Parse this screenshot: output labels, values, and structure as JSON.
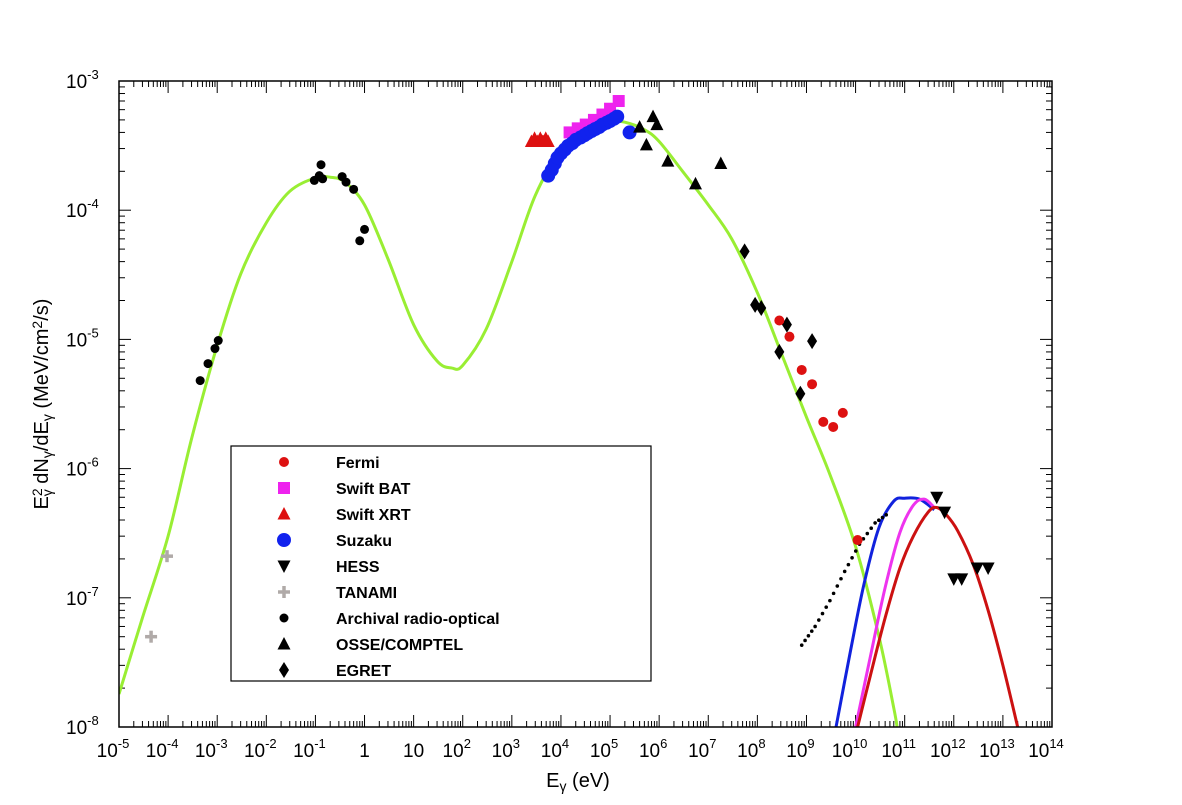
{
  "chart_data": {
    "type": "scatter",
    "x_scale": "log",
    "y_scale": "log",
    "xlim": [
      1e-05,
      100000000000000.0
    ],
    "ylim": [
      1e-08,
      0.001
    ],
    "x_ticks": [
      {
        "v": 1e-05,
        "base": "10",
        "exp": "-5"
      },
      {
        "v": 0.0001,
        "base": "10",
        "exp": "-4"
      },
      {
        "v": 0.001,
        "base": "10",
        "exp": "-3"
      },
      {
        "v": 0.01,
        "base": "10",
        "exp": "-2"
      },
      {
        "v": 0.1,
        "base": "10",
        "exp": "-1"
      },
      {
        "v": 1,
        "base": "1",
        "exp": ""
      },
      {
        "v": 10,
        "base": "10",
        "exp": ""
      },
      {
        "v": 100,
        "base": "10",
        "exp": "2"
      },
      {
        "v": 1000.0,
        "base": "10",
        "exp": "3"
      },
      {
        "v": 10000.0,
        "base": "10",
        "exp": "4"
      },
      {
        "v": 100000.0,
        "base": "10",
        "exp": "5"
      },
      {
        "v": 1000000.0,
        "base": "10",
        "exp": "6"
      },
      {
        "v": 10000000.0,
        "base": "10",
        "exp": "7"
      },
      {
        "v": 100000000.0,
        "base": "10",
        "exp": "8"
      },
      {
        "v": 1000000000.0,
        "base": "10",
        "exp": "9"
      },
      {
        "v": 10000000000.0,
        "base": "10",
        "exp": "10"
      },
      {
        "v": 100000000000.0,
        "base": "10",
        "exp": "11"
      },
      {
        "v": 1000000000000.0,
        "base": "10",
        "exp": "12"
      },
      {
        "v": 10000000000000.0,
        "base": "10",
        "exp": "13"
      },
      {
        "v": 100000000000000.0,
        "base": "10",
        "exp": "14"
      }
    ],
    "y_ticks": [
      {
        "v": 1e-08,
        "base": "10",
        "exp": "-8"
      },
      {
        "v": 1e-07,
        "base": "10",
        "exp": "-7"
      },
      {
        "v": 1e-06,
        "base": "10",
        "exp": "-6"
      },
      {
        "v": 1e-05,
        "base": "10",
        "exp": "-5"
      },
      {
        "v": 0.0001,
        "base": "10",
        "exp": "-4"
      },
      {
        "v": 0.001,
        "base": "10",
        "exp": "-3"
      }
    ],
    "xlabel": {
      "main": "E",
      "sub": "γ",
      "rest": " (eV)"
    },
    "ylabel": {
      "a": "E",
      "a_sup": "2",
      "a_sub": "γ",
      "b": " dN",
      "b_sub": "γ",
      "c": "/dE",
      "c_sub": "γ",
      "d": "  (MeV/cm",
      "d_sup": "2",
      "e": "/s)"
    },
    "legend": {
      "position": "lower-left",
      "entries": [
        {
          "label": "Fermi",
          "marker": "circle",
          "color": "#dd1111"
        },
        {
          "label": "Swift BAT",
          "marker": "square",
          "color": "#ee22ee"
        },
        {
          "label": "Swift XRT",
          "marker": "triangle-up",
          "color": "#dd1111"
        },
        {
          "label": "Suzaku",
          "marker": "circle-large",
          "color": "#1122ee"
        },
        {
          "label": "HESS",
          "marker": "triangle-down",
          "color": "#000000"
        },
        {
          "label": "TANAMI",
          "marker": "plus",
          "color": "#b0aaa8"
        },
        {
          "label": "Archival radio-optical",
          "marker": "circle-small",
          "color": "#000000"
        },
        {
          "label": "OSSE/COMPTEL",
          "marker": "triangle-up",
          "color": "#000000"
        },
        {
          "label": "EGRET",
          "marker": "diamond",
          "color": "#000000"
        }
      ]
    },
    "series": [
      {
        "marker": "plus",
        "color": "#b0aaa8",
        "points": [
          [
            4.5e-05,
            5e-08
          ],
          [
            9.5e-05,
            2.1e-07
          ]
        ]
      },
      {
        "marker": "circle-small",
        "color": "#000000",
        "points": [
          [
            0.00045,
            4.8e-06
          ],
          [
            0.00065,
            6.5e-06
          ],
          [
            0.0009,
            8.5e-06
          ],
          [
            0.00105,
            9.8e-06
          ],
          [
            0.095,
            0.00017
          ],
          [
            0.12,
            0.000185
          ],
          [
            0.13,
            0.000225
          ],
          [
            0.14,
            0.000175
          ],
          [
            0.35,
            0.000182
          ],
          [
            0.42,
            0.000165
          ],
          [
            0.6,
            0.000145
          ],
          [
            0.8,
            5.8e-05
          ],
          [
            1.0,
            7.1e-05
          ]
        ]
      },
      {
        "marker": "triangle-up",
        "color": "#dd1111",
        "points": [
          [
            2500.0,
            0.00034
          ],
          [
            2900.0,
            0.00036
          ],
          [
            3300.0,
            0.00034
          ],
          [
            3800.0,
            0.00036
          ],
          [
            4300.0,
            0.00034
          ],
          [
            4900.0,
            0.00036
          ],
          [
            5500.0,
            0.00034
          ]
        ]
      },
      {
        "marker": "square",
        "color": "#ee22ee",
        "points": [
          [
            15000.0,
            0.0004
          ],
          [
            22000.0,
            0.00043
          ],
          [
            32000.0,
            0.00046
          ],
          [
            47000.0,
            0.0005
          ],
          [
            70000.0,
            0.00055
          ],
          [
            100000.0,
            0.00061
          ],
          [
            150000.0,
            0.0007
          ]
        ]
      },
      {
        "marker": "circle-large",
        "color": "#1122ee",
        "points": [
          [
            5500.0,
            0.000185
          ],
          [
            6500.0,
            0.000205
          ],
          [
            7500.0,
            0.00023
          ],
          [
            8500.0,
            0.000255
          ],
          [
            10000.0,
            0.000275
          ],
          [
            12000.0,
            0.000295
          ],
          [
            14000.0,
            0.000315
          ],
          [
            17000.0,
            0.00033
          ],
          [
            20000.0,
            0.00035
          ],
          [
            25000.0,
            0.000365
          ],
          [
            30000.0,
            0.00038
          ],
          [
            35000.0,
            0.000395
          ],
          [
            42000.0,
            0.00041
          ],
          [
            50000.0,
            0.000425
          ],
          [
            60000.0,
            0.00044
          ],
          [
            70000.0,
            0.00046
          ],
          [
            85000.0,
            0.000475
          ],
          [
            100000.0,
            0.00049
          ],
          [
            120000.0,
            0.00051
          ],
          [
            140000.0,
            0.00053
          ],
          [
            250000.0,
            0.0004
          ]
        ]
      },
      {
        "marker": "triangle-up",
        "color": "#000000",
        "points": [
          [
            400000.0,
            0.00044
          ],
          [
            550000.0,
            0.00032
          ],
          [
            750000.0,
            0.00053
          ],
          [
            900000.0,
            0.00046
          ],
          [
            1500000.0,
            0.00024
          ],
          [
            5500000.0,
            0.00016
          ],
          [
            18000000.0,
            0.00023
          ]
        ]
      },
      {
        "marker": "diamond",
        "color": "#000000",
        "points": [
          [
            55000000.0,
            4.8e-05
          ],
          [
            90000000.0,
            1.85e-05
          ],
          [
            120000000.0,
            1.75e-05
          ],
          [
            280000000.0,
            8e-06
          ],
          [
            400000000.0,
            1.3e-05
          ],
          [
            750000000.0,
            3.8e-06
          ],
          [
            1300000000.0,
            9.7e-06
          ]
        ]
      },
      {
        "marker": "circle",
        "color": "#dd1111",
        "points": [
          [
            280000000.0,
            1.4e-05
          ],
          [
            450000000.0,
            1.05e-05
          ],
          [
            800000000.0,
            5.8e-06
          ],
          [
            1300000000.0,
            4.5e-06
          ],
          [
            2200000000.0,
            2.3e-06
          ],
          [
            3500000000.0,
            2.1e-06
          ],
          [
            5500000000.0,
            2.7e-06
          ],
          [
            11000000000.0,
            2.8e-07
          ]
        ]
      },
      {
        "marker": "triangle-down",
        "color": "#000000",
        "points": [
          [
            450000000000.0,
            6e-07
          ],
          [
            650000000000.0,
            4.6e-07
          ],
          [
            1000000000000.0,
            1.4e-07
          ],
          [
            1450000000000.0,
            1.4e-07
          ],
          [
            3000000000000.0,
            1.7e-07
          ],
          [
            5000000000000.0,
            1.7e-07
          ]
        ]
      }
    ],
    "curves": [
      {
        "color": "#99ee33",
        "points": [
          [
            1e-05,
            1.8e-08
          ],
          [
            3e-05,
            7e-08
          ],
          [
            0.0001,
            3e-07
          ],
          [
            0.0003,
            1.7e-06
          ],
          [
            0.001,
            9e-06
          ],
          [
            0.003,
            3.2e-05
          ],
          [
            0.01,
            8e-05
          ],
          [
            0.03,
            0.00014
          ],
          [
            0.1,
            0.000178
          ],
          [
            0.2,
            0.00018
          ],
          [
            0.4,
            0.000165
          ],
          [
            1,
            0.00011
          ],
          [
            3,
            4.2e-05
          ],
          [
            10,
            1.3e-05
          ],
          [
            30,
            6.8e-06
          ],
          [
            60,
            6e-06
          ],
          [
            100,
            6.3e-06
          ],
          [
            300,
            1.2e-05
          ],
          [
            1000.0,
            4e-05
          ],
          [
            3000.0,
            0.00013
          ],
          [
            10000.0,
            0.00029
          ],
          [
            30000.0,
            0.00042
          ],
          [
            100000.0,
            0.00048
          ],
          [
            200000.0,
            0.00048
          ],
          [
            500000.0,
            0.00042
          ],
          [
            1000000.0,
            0.00034
          ],
          [
            3000000.0,
            0.0002
          ],
          [
            10000000.0,
            0.00011
          ],
          [
            30000000.0,
            6e-05
          ],
          [
            100000000.0,
            2.3e-05
          ],
          [
            300000000.0,
            8e-06
          ],
          [
            1000000000.0,
            2.5e-06
          ],
          [
            3000000000.0,
            9e-07
          ],
          [
            10000000000.0,
            2.5e-07
          ],
          [
            30000000000.0,
            5e-08
          ],
          [
            60000000000.0,
            1.4e-08
          ],
          [
            70000000000.0,
            1e-08
          ]
        ]
      },
      {
        "color": "#1122dd",
        "points": [
          [
            4000000000.0,
            1e-08
          ],
          [
            8000000000.0,
            4e-08
          ],
          [
            15000000000.0,
            1.3e-07
          ],
          [
            30000000000.0,
            3.5e-07
          ],
          [
            60000000000.0,
            5.6e-07
          ],
          [
            100000000000.0,
            5.9e-07
          ],
          [
            200000000000.0,
            5.8e-07
          ],
          [
            400000000000.0,
            4.8e-07
          ]
        ]
      },
      {
        "color": "#ee33ee",
        "points": [
          [
            10000000000.0,
            1e-08
          ],
          [
            20000000000.0,
            3.5e-08
          ],
          [
            40000000000.0,
            1.2e-07
          ],
          [
            80000000000.0,
            3.2e-07
          ],
          [
            150000000000.0,
            5.2e-07
          ],
          [
            250000000000.0,
            5.8e-07
          ],
          [
            400000000000.0,
            5e-07
          ]
        ]
      },
      {
        "color": "#cc1111",
        "points": [
          [
            11000000000.0,
            1e-08
          ],
          [
            20000000000.0,
            2.5e-08
          ],
          [
            40000000000.0,
            7e-08
          ],
          [
            80000000000.0,
            1.7e-07
          ],
          [
            150000000000.0,
            3e-07
          ],
          [
            300000000000.0,
            4.6e-07
          ],
          [
            450000000000.0,
            5e-07
          ],
          [
            700000000000.0,
            4.4e-07
          ],
          [
            1200000000000.0,
            3.3e-07
          ],
          [
            2500000000000.0,
            1.8e-07
          ],
          [
            5000000000000.0,
            8e-08
          ],
          [
            10000000000000.0,
            3e-08
          ],
          [
            20000000000000.0,
            1e-08
          ]
        ]
      },
      {
        "color": "#000000",
        "style": "dotted",
        "points": [
          [
            800000000.0,
            4.3e-08
          ],
          [
            1500000000.0,
            6e-08
          ],
          [
            3000000000.0,
            9.5e-08
          ],
          [
            6000000000.0,
            1.6e-07
          ],
          [
            12000000000.0,
            2.6e-07
          ],
          [
            25000000000.0,
            3.8e-07
          ],
          [
            50000000000.0,
            4.6e-07
          ]
        ]
      }
    ]
  }
}
